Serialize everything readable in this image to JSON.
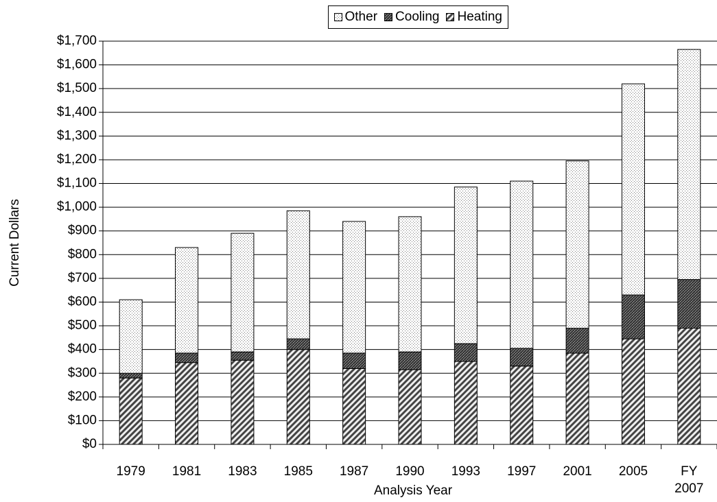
{
  "chart_data": {
    "type": "stacked_bar",
    "x_label": "Analysis Year",
    "y_label": "Current Dollars",
    "categories": [
      "1979",
      "1981",
      "1983",
      "1985",
      "1987",
      "1990",
      "1993",
      "1997",
      "2001",
      "2005",
      "FY 2007"
    ],
    "series": [
      {
        "name": "Other",
        "color": "#e8e8e8",
        "pattern": "dots",
        "values": [
          310,
          445,
          500,
          540,
          555,
          570,
          660,
          705,
          705,
          890,
          970
        ]
      },
      {
        "name": "Cooling",
        "color": "#444444",
        "pattern": "crosshatch",
        "values": [
          20,
          40,
          35,
          45,
          65,
          75,
          75,
          75,
          105,
          185,
          205
        ]
      },
      {
        "name": "Heating",
        "color": "#777777",
        "pattern": "diagonal",
        "values": [
          280,
          345,
          355,
          400,
          320,
          315,
          350,
          330,
          385,
          445,
          490
        ]
      }
    ],
    "ylim": [
      0,
      1700
    ],
    "yticks": [
      {
        "value": 0,
        "label": "$0"
      },
      {
        "value": 100,
        "label": "$100"
      },
      {
        "value": 200,
        "label": "$200"
      },
      {
        "value": 300,
        "label": "$300"
      },
      {
        "value": 400,
        "label": "$400"
      },
      {
        "value": 500,
        "label": "$500"
      },
      {
        "value": 600,
        "label": "$600"
      },
      {
        "value": 700,
        "label": "$700"
      },
      {
        "value": 800,
        "label": "$800"
      },
      {
        "value": 900,
        "label": "$900"
      },
      {
        "value": 1000,
        "label": "$1,000"
      },
      {
        "value": 1100,
        "label": "$1,100"
      },
      {
        "value": 1200,
        "label": "$1,200"
      },
      {
        "value": 1300,
        "label": "$1,300"
      },
      {
        "value": 1400,
        "label": "$1,400"
      },
      {
        "value": 1500,
        "label": "$1,500"
      },
      {
        "value": 1600,
        "label": "$1,600"
      },
      {
        "value": 1700,
        "label": "$1,700"
      }
    ],
    "grid": true,
    "legend_position": "top"
  }
}
